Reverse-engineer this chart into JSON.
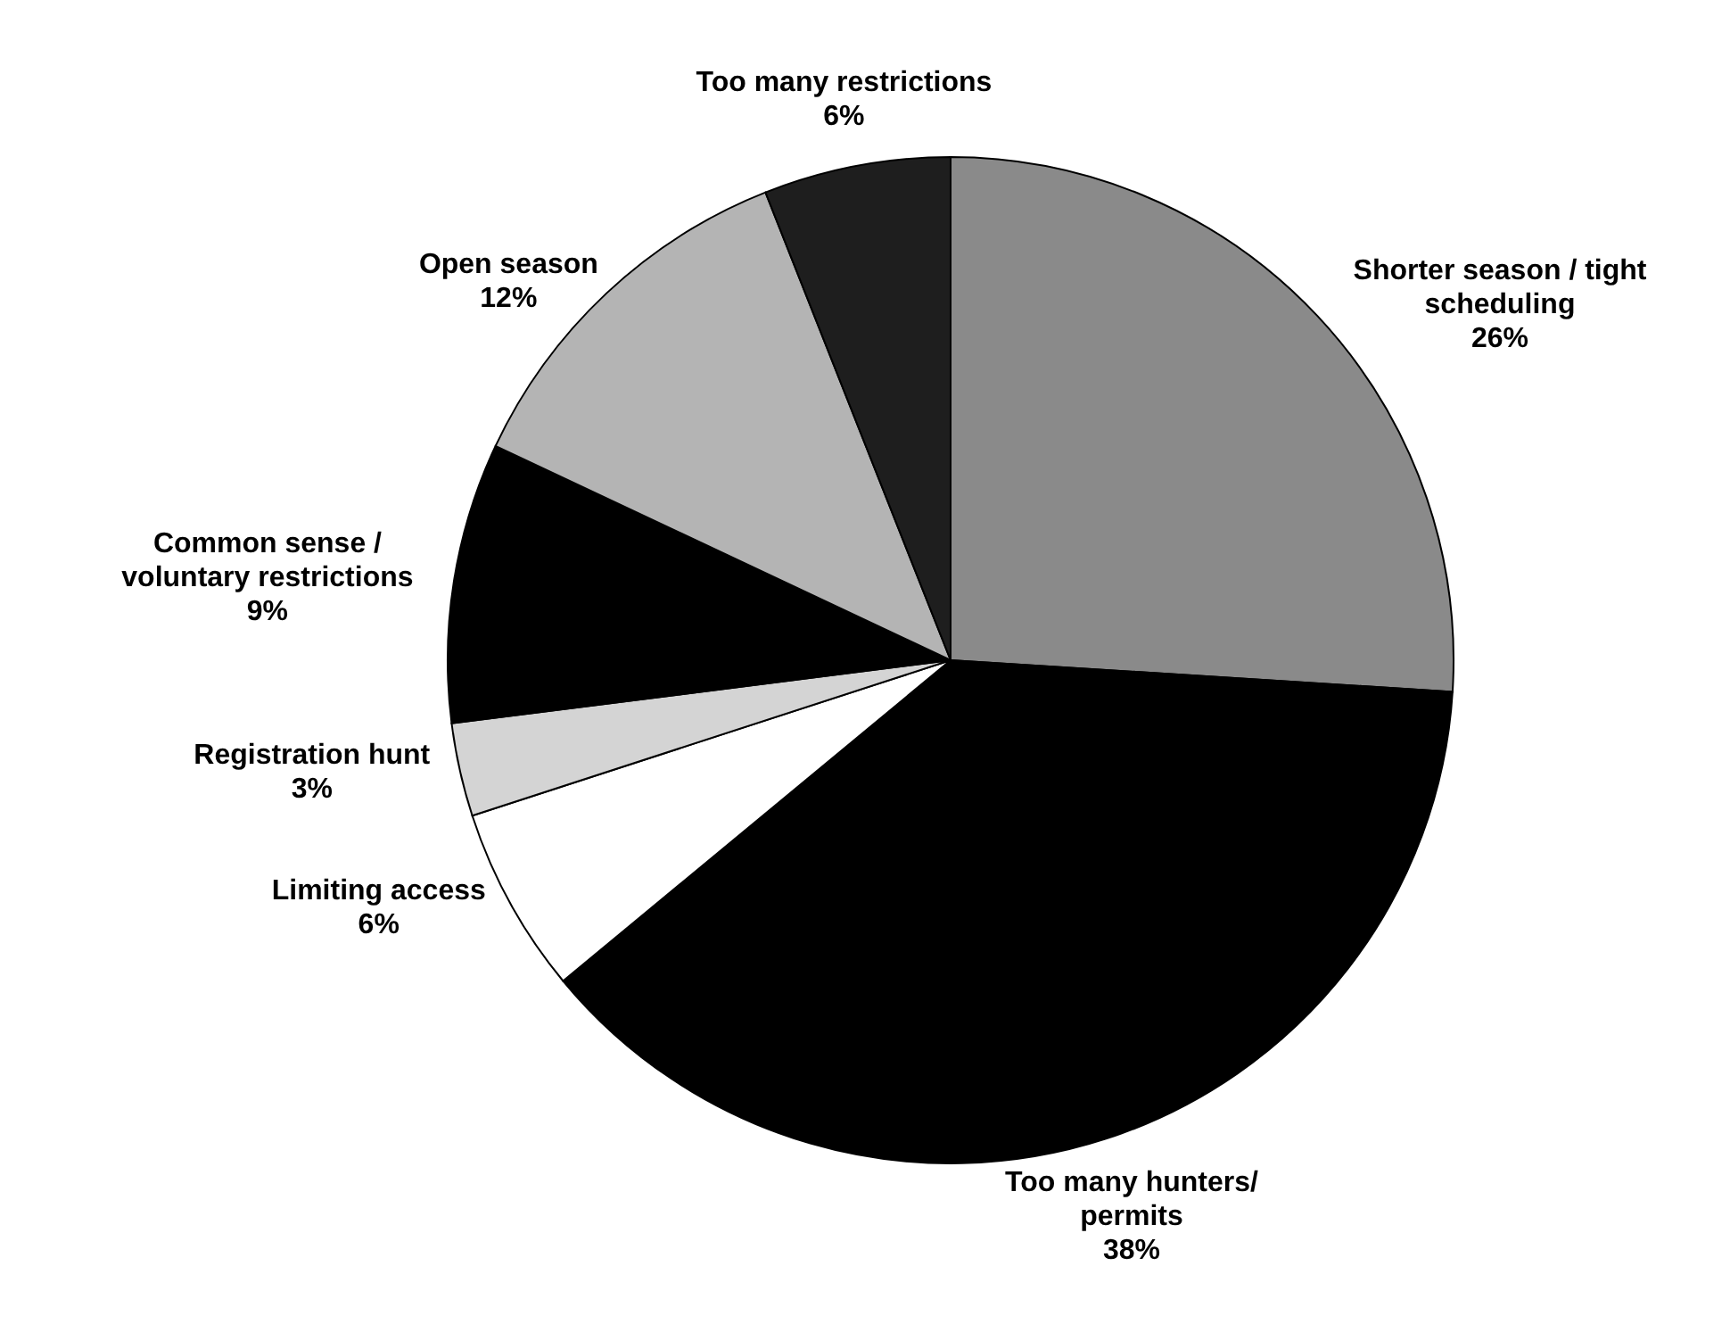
{
  "chart_data": {
    "type": "pie",
    "categories": [
      "Shorter season / tight scheduling",
      "Too many hunters/ permits",
      "Limiting access",
      "Registration hunt",
      "Common sense / voluntary restrictions",
      "Open season",
      "Too many restrictions"
    ],
    "values": [
      26,
      38,
      6,
      3,
      9,
      12,
      6
    ],
    "value_labels": [
      "26%",
      "38%",
      "6%",
      "3%",
      "9%",
      "12%",
      "6%"
    ],
    "colors": [
      "#8a8a8a",
      "#000000",
      "#ffffff",
      "#d4d4d4",
      "#000000",
      "#b4b4b4",
      "#1e1e1e"
    ]
  }
}
